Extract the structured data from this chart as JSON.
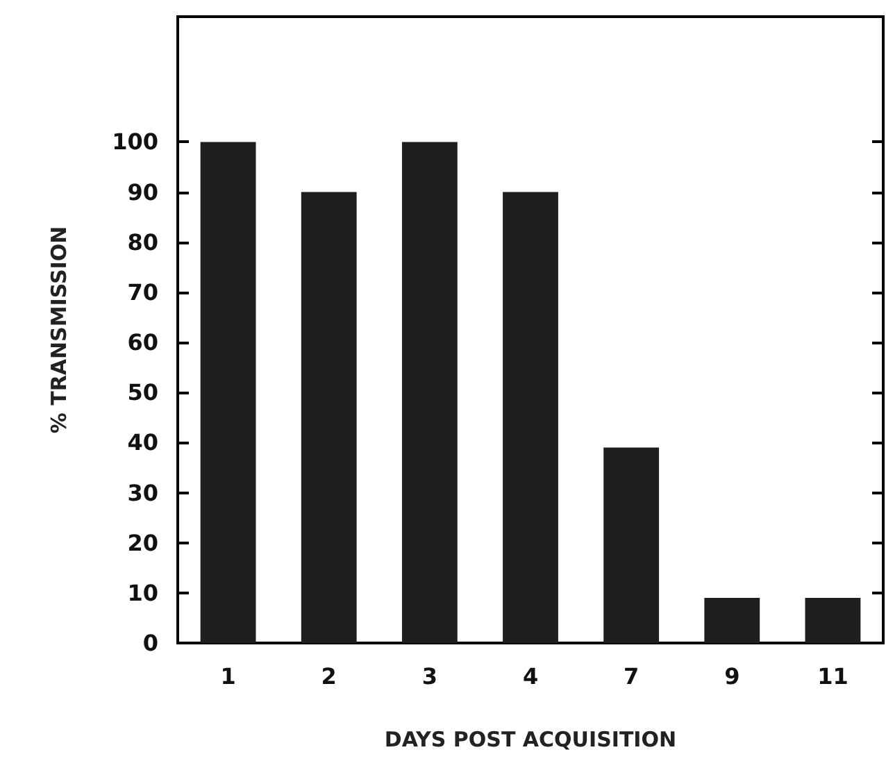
{
  "chart_data": {
    "type": "bar",
    "xlabel": "DAYS POST ACQUISITION",
    "ylabel": "% TRANSMISSION",
    "categories": [
      "1",
      "2",
      "3",
      "4",
      "7",
      "9",
      "11"
    ],
    "values": [
      100,
      90,
      100,
      90,
      39,
      9,
      9
    ],
    "color": "#1e1e1e",
    "ylim": [
      0,
      125
    ],
    "yticks": [
      0,
      10,
      20,
      30,
      40,
      50,
      60,
      70,
      80,
      90,
      100
    ],
    "grid": false
  }
}
